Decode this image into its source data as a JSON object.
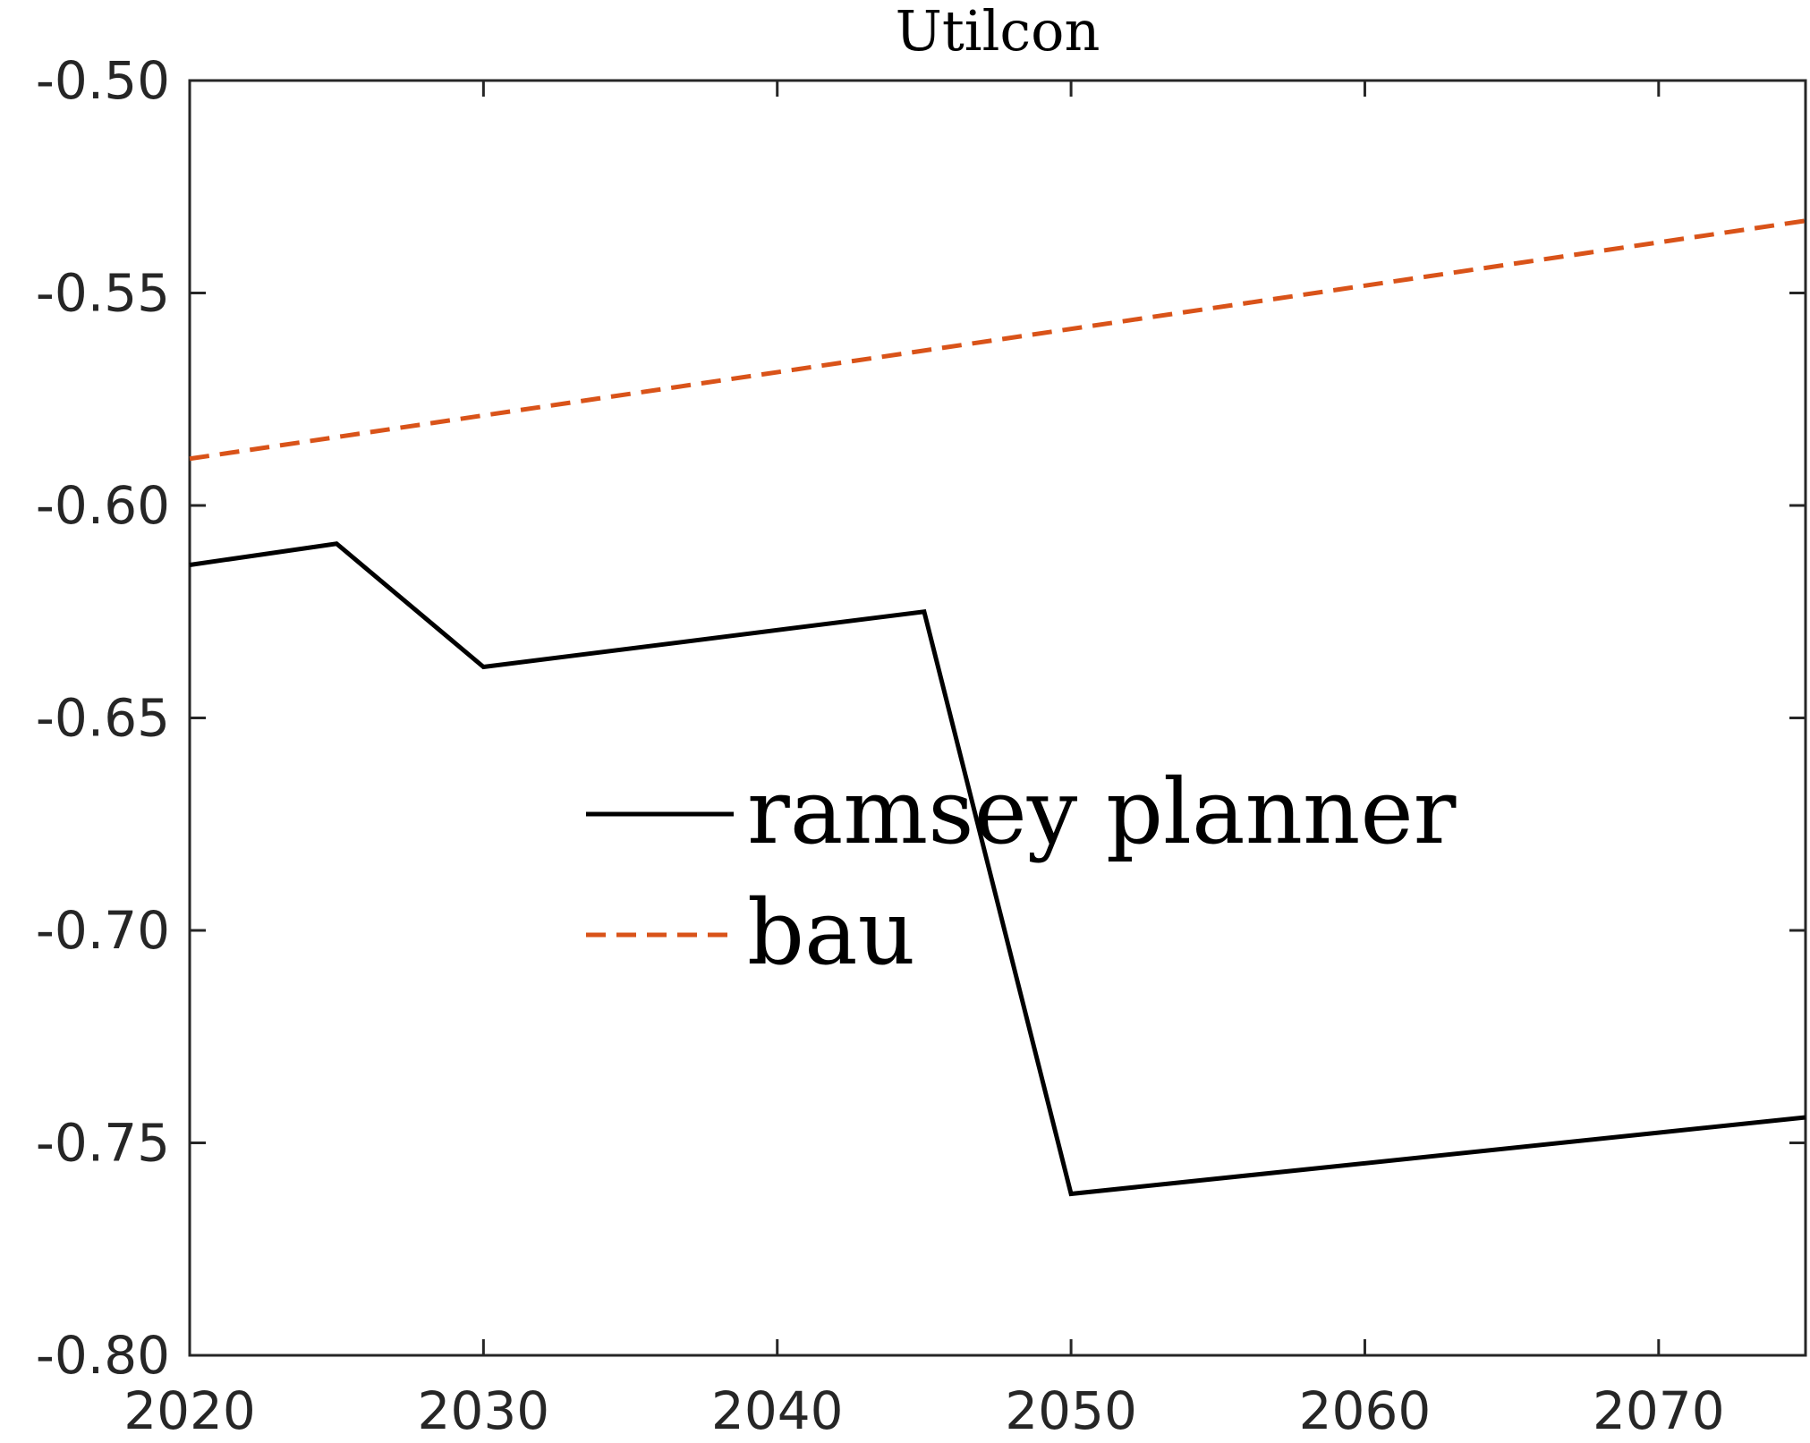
{
  "chart_data": {
    "type": "line",
    "title": "Utilcon",
    "xlabel": "",
    "ylabel": "",
    "xlim": [
      2020,
      2075
    ],
    "ylim": [
      -0.8,
      -0.5
    ],
    "x_ticks": [
      2020,
      2030,
      2040,
      2050,
      2060,
      2070
    ],
    "x_tick_labels": [
      "2020",
      "2030",
      "2040",
      "2050",
      "2060",
      "2070"
    ],
    "y_ticks": [
      -0.5,
      -0.55,
      -0.6,
      -0.65,
      -0.7,
      -0.75,
      -0.8
    ],
    "y_tick_labels": [
      "-0.50",
      "-0.55",
      "-0.60",
      "-0.65",
      "-0.70",
      "-0.75",
      "-0.80"
    ],
    "grid": false,
    "legend_position": "center",
    "series": [
      {
        "name": "ramsey planner",
        "color": "#000000",
        "style": "solid",
        "x": [
          2020,
          2025,
          2030,
          2045,
          2050,
          2075
        ],
        "y": [
          -0.614,
          -0.609,
          -0.638,
          -0.625,
          -0.762,
          -0.744
        ]
      },
      {
        "name": "bau",
        "color": "#D95319",
        "style": "dashed",
        "x": [
          2020,
          2075
        ],
        "y": [
          -0.589,
          -0.533
        ]
      }
    ]
  }
}
